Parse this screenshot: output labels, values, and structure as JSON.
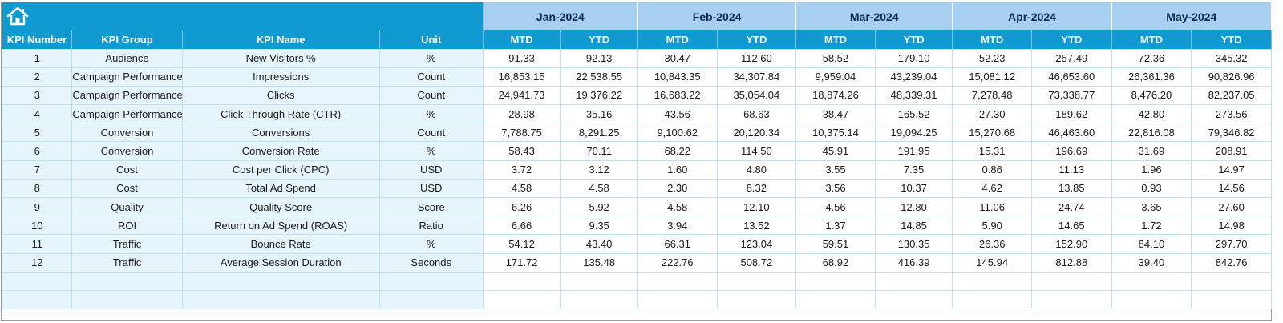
{
  "months": [
    "Jan-2024",
    "Feb-2024",
    "Mar-2024",
    "Apr-2024",
    "May-2024"
  ],
  "headers": {
    "kpi_number": "KPI Number",
    "kpi_group": "KPI Group",
    "kpi_name": "KPI Name",
    "unit": "Unit",
    "mtd": "MTD",
    "ytd": "YTD"
  },
  "icons": {
    "home": "home-icon"
  },
  "colors": {
    "header_blue": "#1199d1",
    "month_band": "#a8cff0",
    "label_fill": "#e6f5fc"
  },
  "rows": [
    {
      "num": "1",
      "group": "Audience",
      "name": "New Visitors %",
      "unit": "%",
      "values": [
        "91.33",
        "92.13",
        "30.47",
        "112.60",
        "58.52",
        "179.10",
        "52.23",
        "257.49",
        "72.36",
        "345.32"
      ]
    },
    {
      "num": "2",
      "group": "Campaign Performance",
      "name": "Impressions",
      "unit": "Count",
      "values": [
        "16,853.15",
        "22,538.55",
        "10,843.35",
        "34,307.84",
        "9,959.04",
        "43,239.04",
        "15,081.12",
        "46,653.60",
        "26,361.36",
        "90,826.96"
      ]
    },
    {
      "num": "3",
      "group": "Campaign Performance",
      "name": "Clicks",
      "unit": "Count",
      "values": [
        "24,941.73",
        "19,376.22",
        "16,683.22",
        "35,054.04",
        "18,874.26",
        "48,339.31",
        "7,278.48",
        "73,338.77",
        "8,476.20",
        "82,237.05"
      ]
    },
    {
      "num": "4",
      "group": "Campaign Performance",
      "name": "Click Through Rate (CTR)",
      "unit": "%",
      "values": [
        "28.98",
        "35.16",
        "43.56",
        "68.63",
        "38.47",
        "165.52",
        "27.30",
        "189.62",
        "42.80",
        "273.56"
      ]
    },
    {
      "num": "5",
      "group": "Conversion",
      "name": "Conversions",
      "unit": "Count",
      "values": [
        "7,788.75",
        "8,291.25",
        "9,100.62",
        "20,120.34",
        "10,375.14",
        "19,094.25",
        "15,270.68",
        "46,463.60",
        "22,816.08",
        "79,346.82"
      ]
    },
    {
      "num": "6",
      "group": "Conversion",
      "name": "Conversion Rate",
      "unit": "%",
      "values": [
        "58.43",
        "70.11",
        "68.22",
        "114.50",
        "45.91",
        "191.95",
        "15.31",
        "196.69",
        "31.69",
        "208.91"
      ]
    },
    {
      "num": "7",
      "group": "Cost",
      "name": "Cost per Click (CPC)",
      "unit": "USD",
      "values": [
        "3.72",
        "3.12",
        "1.60",
        "4.80",
        "3.55",
        "7.35",
        "0.86",
        "11.13",
        "1.96",
        "14.97"
      ]
    },
    {
      "num": "8",
      "group": "Cost",
      "name": "Total Ad Spend",
      "unit": "USD",
      "values": [
        "4.58",
        "4.58",
        "2.30",
        "8.32",
        "3.56",
        "10.37",
        "4.62",
        "13.85",
        "0.93",
        "14.56"
      ]
    },
    {
      "num": "9",
      "group": "Quality",
      "name": "Quality Score",
      "unit": "Score",
      "values": [
        "6.26",
        "5.92",
        "4.58",
        "12.10",
        "4.56",
        "12.80",
        "11.06",
        "24.74",
        "3.65",
        "27.60"
      ]
    },
    {
      "num": "10",
      "group": "ROI",
      "name": "Return on Ad Spend (ROAS)",
      "unit": "Ratio",
      "values": [
        "6.66",
        "9.35",
        "3.94",
        "13.52",
        "1.37",
        "14.85",
        "5.90",
        "14.65",
        "1.72",
        "14.98"
      ]
    },
    {
      "num": "11",
      "group": "Traffic",
      "name": "Bounce Rate",
      "unit": "%",
      "values": [
        "54.12",
        "43.40",
        "66.31",
        "123.04",
        "59.51",
        "130.35",
        "26.36",
        "152.90",
        "84.10",
        "297.70"
      ]
    },
    {
      "num": "12",
      "group": "Traffic",
      "name": "Average Session Duration",
      "unit": "Seconds",
      "values": [
        "171.72",
        "135.48",
        "222.76",
        "508.72",
        "68.92",
        "416.39",
        "145.94",
        "812.88",
        "39.40",
        "842.76"
      ]
    }
  ]
}
